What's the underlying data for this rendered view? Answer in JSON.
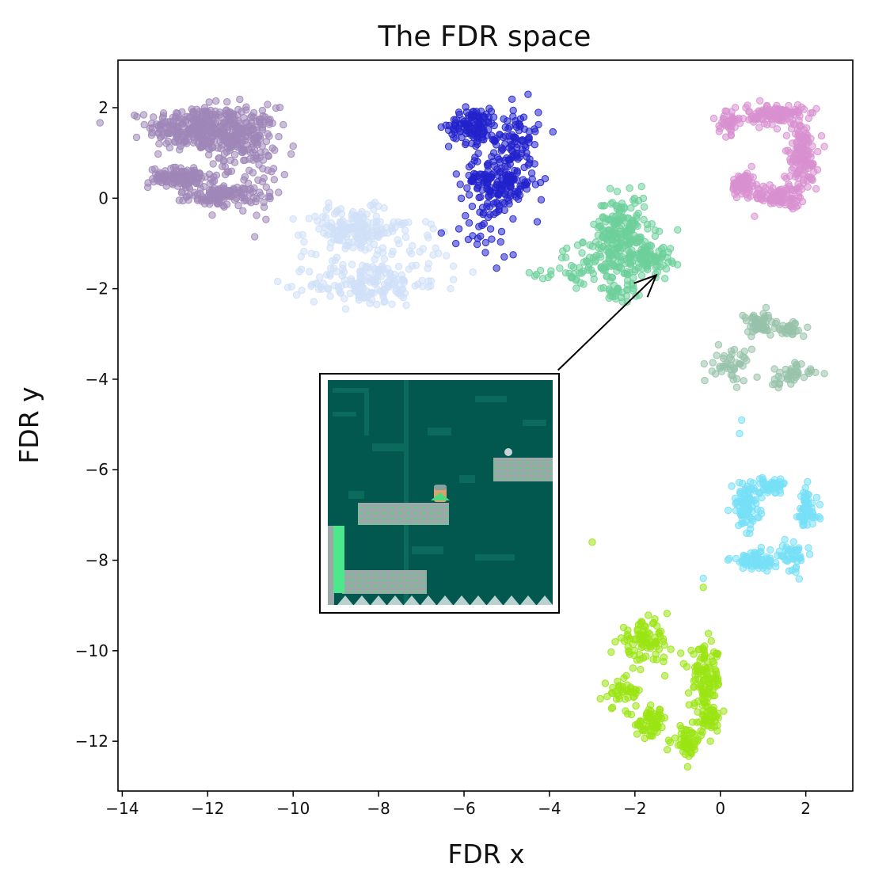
{
  "chart_data": {
    "type": "scatter",
    "title": "The FDR space",
    "xlabel": "FDR x",
    "ylabel": "FDR y",
    "xlim": [
      -14.1,
      3.1
    ],
    "ylim": [
      -13.1,
      3.05
    ],
    "xticks": [
      -14,
      -12,
      -10,
      -8,
      -6,
      -4,
      -2,
      0,
      2
    ],
    "yticks": [
      2,
      0,
      -2,
      -4,
      -6,
      -8,
      -10,
      -12
    ],
    "xtick_labels": [
      "−14",
      "−12",
      "−10",
      "−8",
      "−6",
      "−4",
      "−2",
      "0",
      "2"
    ],
    "ytick_labels": [
      "2",
      "0",
      "−2",
      "−4",
      "−6",
      "−8",
      "−10",
      "−12"
    ],
    "grid": false,
    "legend": "none",
    "series": [
      {
        "color": "#9f86b8",
        "clusters": [
          {
            "cx": -12.3,
            "cy": 1.55,
            "rx": 1.0,
            "ry": 0.45,
            "n": 260
          },
          {
            "cx": -11.2,
            "cy": 1.35,
            "rx": 0.75,
            "ry": 0.6,
            "n": 200
          },
          {
            "cx": -12.6,
            "cy": 0.45,
            "rx": 0.7,
            "ry": 0.2,
            "n": 120
          },
          {
            "cx": -11.7,
            "cy": 0.05,
            "rx": 0.7,
            "ry": 0.2,
            "n": 110
          },
          {
            "cx": -10.8,
            "cy": 0.2,
            "rx": 0.6,
            "ry": 0.8,
            "n": 30
          }
        ]
      },
      {
        "color": "#cfe0f7",
        "clusters": [
          {
            "cx": -8.6,
            "cy": -0.7,
            "rx": 1.0,
            "ry": 0.45,
            "n": 160
          },
          {
            "cx": -8.3,
            "cy": -1.9,
            "rx": 1.2,
            "ry": 0.45,
            "n": 150
          },
          {
            "cx": -7.4,
            "cy": -1.2,
            "rx": 1.8,
            "ry": 0.9,
            "n": 60
          }
        ]
      },
      {
        "color": "#2222cc",
        "clusters": [
          {
            "cx": -5.8,
            "cy": 1.6,
            "rx": 0.5,
            "ry": 0.35,
            "n": 110
          },
          {
            "cx": -4.8,
            "cy": 1.3,
            "rx": 0.5,
            "ry": 0.7,
            "n": 90
          },
          {
            "cx": -5.2,
            "cy": 0.35,
            "rx": 0.8,
            "ry": 0.55,
            "n": 180
          },
          {
            "cx": -5.6,
            "cy": -0.8,
            "rx": 0.7,
            "ry": 0.6,
            "n": 25
          }
        ]
      },
      {
        "color": "#6dcf9a",
        "clusters": [
          {
            "cx": -2.3,
            "cy": -0.7,
            "rx": 0.55,
            "ry": 0.7,
            "n": 170
          },
          {
            "cx": -1.7,
            "cy": -1.3,
            "rx": 0.5,
            "ry": 0.35,
            "n": 90
          },
          {
            "cx": -2.8,
            "cy": -1.4,
            "rx": 0.8,
            "ry": 0.45,
            "n": 80
          },
          {
            "cx": -2.3,
            "cy": -2.1,
            "rx": 0.45,
            "ry": 0.3,
            "n": 30
          },
          {
            "cx": -3.8,
            "cy": -1.7,
            "rx": 0.6,
            "ry": 0.2,
            "n": 18
          }
        ]
      },
      {
        "color": "#d890d0",
        "clusters": [
          {
            "cx": 1.3,
            "cy": 1.85,
            "rx": 0.6,
            "ry": 0.2,
            "n": 110
          },
          {
            "cx": 1.9,
            "cy": 0.9,
            "rx": 0.35,
            "ry": 0.75,
            "n": 150
          },
          {
            "cx": 1.35,
            "cy": 0.05,
            "rx": 0.55,
            "ry": 0.2,
            "n": 80
          },
          {
            "cx": 0.55,
            "cy": 0.3,
            "rx": 0.25,
            "ry": 0.25,
            "n": 70
          },
          {
            "cx": 0.2,
            "cy": 1.7,
            "rx": 0.2,
            "ry": 0.25,
            "n": 40
          }
        ]
      },
      {
        "color": "#98c2aa",
        "clusters": [
          {
            "cx": 0.9,
            "cy": -2.8,
            "rx": 0.45,
            "ry": 0.25,
            "n": 60
          },
          {
            "cx": 1.65,
            "cy": -2.9,
            "rx": 0.3,
            "ry": 0.15,
            "n": 30
          },
          {
            "cx": 0.3,
            "cy": -3.7,
            "rx": 0.4,
            "ry": 0.35,
            "n": 45
          },
          {
            "cx": 1.6,
            "cy": -3.9,
            "rx": 0.5,
            "ry": 0.25,
            "n": 40
          }
        ]
      },
      {
        "color": "#77e0f6",
        "clusters": [
          {
            "cx": 0.6,
            "cy": -6.8,
            "rx": 0.3,
            "ry": 0.45,
            "n": 90
          },
          {
            "cx": 1.2,
            "cy": -6.35,
            "rx": 0.5,
            "ry": 0.15,
            "n": 50
          },
          {
            "cx": 2.0,
            "cy": -6.9,
            "rx": 0.25,
            "ry": 0.45,
            "n": 60
          },
          {
            "cx": 0.9,
            "cy": -8.0,
            "rx": 0.6,
            "ry": 0.2,
            "n": 70
          },
          {
            "cx": 1.7,
            "cy": -7.9,
            "rx": 0.3,
            "ry": 0.3,
            "n": 40
          }
        ]
      },
      {
        "color": "#9ae413",
        "clusters": [
          {
            "cx": -1.8,
            "cy": -9.8,
            "rx": 0.55,
            "ry": 0.4,
            "n": 90
          },
          {
            "cx": -0.35,
            "cy": -10.6,
            "rx": 0.35,
            "ry": 0.6,
            "n": 100
          },
          {
            "cx": -2.3,
            "cy": -10.9,
            "rx": 0.4,
            "ry": 0.3,
            "n": 40
          },
          {
            "cx": -1.6,
            "cy": -11.6,
            "rx": 0.35,
            "ry": 0.3,
            "n": 60
          },
          {
            "cx": -0.8,
            "cy": -12.0,
            "rx": 0.3,
            "ry": 0.3,
            "n": 50
          },
          {
            "cx": -0.3,
            "cy": -11.5,
            "rx": 0.3,
            "ry": 0.35,
            "n": 50
          }
        ]
      }
    ],
    "stray_points": [
      {
        "x": -3.0,
        "y": -7.6,
        "color": "#9ae413"
      },
      {
        "x": -0.4,
        "y": -8.6,
        "color": "#9ae413"
      },
      {
        "x": 0.5,
        "y": -4.9,
        "color": "#77e0f6"
      },
      {
        "x": 0.45,
        "y": -5.2,
        "color": "#77e0f6"
      },
      {
        "x": -0.4,
        "y": -8.4,
        "color": "#77e0f6"
      },
      {
        "x": -13.3,
        "y": 1.55,
        "color": "#9f86b8"
      },
      {
        "x": -10.0,
        "y": 1.15,
        "color": "#9f86b8"
      },
      {
        "x": -10.9,
        "y": -0.85,
        "color": "#9f86b8"
      },
      {
        "x": -1.0,
        "y": -0.7,
        "color": "#6dcf9a"
      },
      {
        "x": -3.2,
        "y": -1.9,
        "color": "#6dcf9a"
      },
      {
        "x": -5.5,
        "y": -1.2,
        "color": "#2222cc"
      },
      {
        "x": -4.85,
        "y": -1.25,
        "color": "#2222cc"
      },
      {
        "x": 0.8,
        "y": -0.4,
        "color": "#d890d0"
      }
    ],
    "annotation": {
      "type": "arrow-with-inset-image",
      "arrow_from": [
        -3.8,
        -3.8
      ],
      "arrow_to": [
        -1.5,
        -1.7
      ],
      "inset_box": {
        "x0": -9.3,
        "x1": -3.8,
        "y0": -9.05,
        "y1": -3.9
      }
    }
  },
  "colors": {
    "inset_background": "#02574e",
    "inset_stripes": "#0b6a5b",
    "platform": "#9aa8a8",
    "platform_mortar": "#4fd882",
    "accent_wall": "#4ee88c",
    "spikes": "#b9d2d0"
  }
}
